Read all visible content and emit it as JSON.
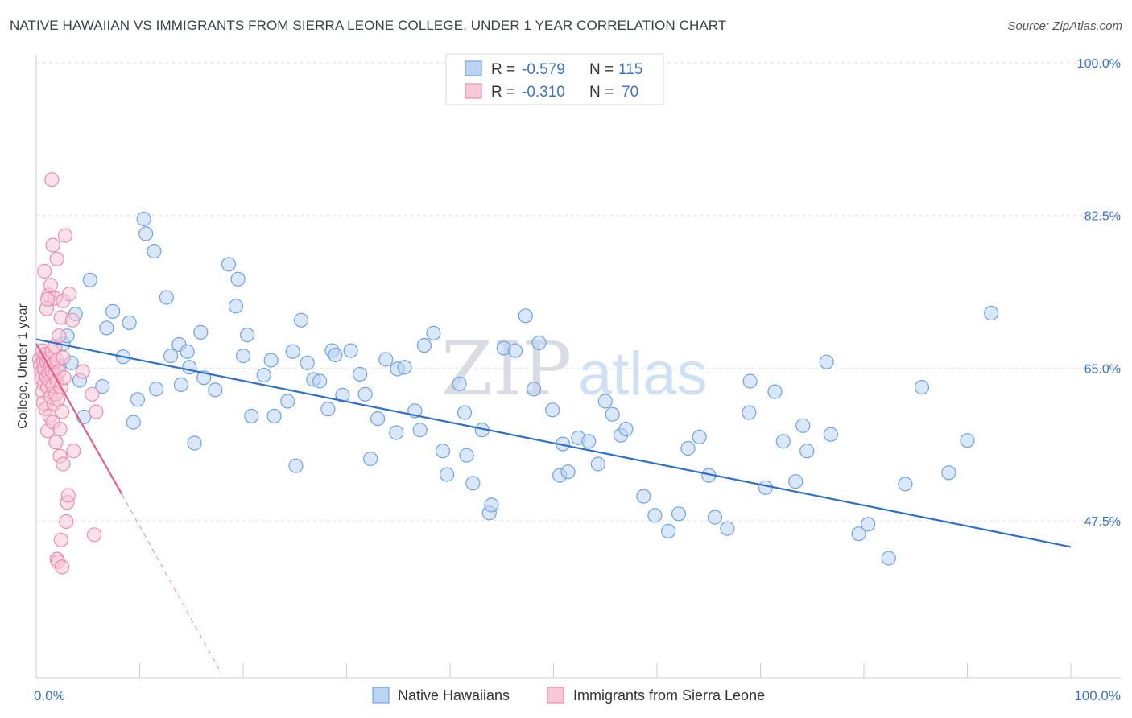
{
  "title": "NATIVE HAWAIIAN VS IMMIGRANTS FROM SIERRA LEONE COLLEGE, UNDER 1 YEAR CORRELATION CHART",
  "source": "Source: ZipAtlas.com",
  "watermark": {
    "part1": "ZIP",
    "part2": "atlas"
  },
  "colors": {
    "blue": "#6fa3e0",
    "blue_fill": "#bcd4f3",
    "blue_line": "#2f6fcc",
    "pink": "#ec8cac",
    "pink_fill": "#f7c9d8",
    "pink_line": "#e0608a",
    "grid": "#dde3ea",
    "axis_text": "#3b72c9"
  },
  "legend": {
    "rows": [
      {
        "r_label": "R = ",
        "r_value": "-0.579",
        "n_label": "N = ",
        "n_value": "115"
      },
      {
        "r_label": "R = ",
        "r_value": "-0.310",
        "n_label": "N = ",
        "n_value": "70"
      }
    ]
  },
  "chart_data": {
    "type": "scatter",
    "xlabel": "",
    "ylabel": "College, Under 1 year",
    "xlim": [
      0,
      100
    ],
    "ylim": [
      29.5,
      100
    ],
    "x_ticks": [
      {
        "value": 0,
        "label": "0.0%"
      },
      {
        "value": 100,
        "label": "100.0%"
      }
    ],
    "y_ticks": [
      {
        "value": 100,
        "label": "100.0%"
      },
      {
        "value": 82.5,
        "label": "82.5%"
      },
      {
        "value": 65,
        "label": "65.0%"
      },
      {
        "value": 47.5,
        "label": "47.5%"
      }
    ],
    "grid": true,
    "legend_position": "top-center",
    "series": [
      {
        "name": "Native Hawaiians",
        "color": "#6fa3e0",
        "trend": {
          "x0": 0,
          "y0": 68.3,
          "x1": 100,
          "y1": 44.5,
          "dashed_extension": false
        },
        "points": [
          [
            0.6,
            66.2
          ],
          [
            1.2,
            64.8
          ],
          [
            1.8,
            63.8
          ],
          [
            2.2,
            65.3
          ],
          [
            2.6,
            67.8
          ],
          [
            3.0,
            68.7
          ],
          [
            3.4,
            65.6
          ],
          [
            3.8,
            71.2
          ],
          [
            4.2,
            63.6
          ],
          [
            4.6,
            59.4
          ],
          [
            5.2,
            75.1
          ],
          [
            6.4,
            62.9
          ],
          [
            6.8,
            69.6
          ],
          [
            7.4,
            71.5
          ],
          [
            8.4,
            66.3
          ],
          [
            9.0,
            70.2
          ],
          [
            9.4,
            58.8
          ],
          [
            9.8,
            61.4
          ],
          [
            10.4,
            82.1
          ],
          [
            10.6,
            80.4
          ],
          [
            11.4,
            78.4
          ],
          [
            11.6,
            62.6
          ],
          [
            12.6,
            73.1
          ],
          [
            13.0,
            66.4
          ],
          [
            13.8,
            67.7
          ],
          [
            14.0,
            63.1
          ],
          [
            14.6,
            66.9
          ],
          [
            14.8,
            65.1
          ],
          [
            15.3,
            56.4
          ],
          [
            15.9,
            69.1
          ],
          [
            16.2,
            63.9
          ],
          [
            17.3,
            62.5
          ],
          [
            18.6,
            76.9
          ],
          [
            19.5,
            75.2
          ],
          [
            19.3,
            72.1
          ],
          [
            20.0,
            66.4
          ],
          [
            20.4,
            68.8
          ],
          [
            20.8,
            59.5
          ],
          [
            22.0,
            64.2
          ],
          [
            22.7,
            65.9
          ],
          [
            23.0,
            59.5
          ],
          [
            24.3,
            61.2
          ],
          [
            25.1,
            53.8
          ],
          [
            24.8,
            66.9
          ],
          [
            25.6,
            70.5
          ],
          [
            26.2,
            65.6
          ],
          [
            26.8,
            63.7
          ],
          [
            27.4,
            63.5
          ],
          [
            28.2,
            60.3
          ],
          [
            28.6,
            67.0
          ],
          [
            28.9,
            66.5
          ],
          [
            29.6,
            61.9
          ],
          [
            30.4,
            67.0
          ],
          [
            31.3,
            64.3
          ],
          [
            31.8,
            62.0
          ],
          [
            32.3,
            54.6
          ],
          [
            33.0,
            59.2
          ],
          [
            33.8,
            66.0
          ],
          [
            34.8,
            57.6
          ],
          [
            34.9,
            64.9
          ],
          [
            35.6,
            65.1
          ],
          [
            36.6,
            60.1
          ],
          [
            37.1,
            57.9
          ],
          [
            37.5,
            67.6
          ],
          [
            38.4,
            69.0
          ],
          [
            39.3,
            55.5
          ],
          [
            39.7,
            52.8
          ],
          [
            40.9,
            63.2
          ],
          [
            41.4,
            59.9
          ],
          [
            41.6,
            55.0
          ],
          [
            42.2,
            51.8
          ],
          [
            43.1,
            57.9
          ],
          [
            43.8,
            48.4
          ],
          [
            44.0,
            49.3
          ],
          [
            45.2,
            67.3
          ],
          [
            46.3,
            67.0
          ],
          [
            47.3,
            71.0
          ],
          [
            48.1,
            62.6
          ],
          [
            48.6,
            67.9
          ],
          [
            49.9,
            60.2
          ],
          [
            50.6,
            52.7
          ],
          [
            50.9,
            56.3
          ],
          [
            51.4,
            53.1
          ],
          [
            52.4,
            57.0
          ],
          [
            53.4,
            56.6
          ],
          [
            54.3,
            54.0
          ],
          [
            55.0,
            61.2
          ],
          [
            55.7,
            59.7
          ],
          [
            56.5,
            57.3
          ],
          [
            57.0,
            58.0
          ],
          [
            58.7,
            50.3
          ],
          [
            59.8,
            48.1
          ],
          [
            61.1,
            46.3
          ],
          [
            62.1,
            48.3
          ],
          [
            63.0,
            55.8
          ],
          [
            64.1,
            57.1
          ],
          [
            65.0,
            52.7
          ],
          [
            65.6,
            47.9
          ],
          [
            66.8,
            46.6
          ],
          [
            68.9,
            59.9
          ],
          [
            69.0,
            63.5
          ],
          [
            70.5,
            51.3
          ],
          [
            71.4,
            62.3
          ],
          [
            72.2,
            56.6
          ],
          [
            73.4,
            52.0
          ],
          [
            74.1,
            58.4
          ],
          [
            74.5,
            55.5
          ],
          [
            76.4,
            65.7
          ],
          [
            76.8,
            57.4
          ],
          [
            79.5,
            46.0
          ],
          [
            80.4,
            47.1
          ],
          [
            82.4,
            43.2
          ],
          [
            84.0,
            51.7
          ],
          [
            85.6,
            62.8
          ],
          [
            88.2,
            53.0
          ],
          [
            90.0,
            56.7
          ],
          [
            92.3,
            71.3
          ]
        ]
      },
      {
        "name": "Immigrants from Sierra Leone",
        "color": "#ec8cac",
        "trend": {
          "x0": 0,
          "y0": 67.8,
          "x1": 8.3,
          "y1": 50.5,
          "dash_x1": 17.9,
          "dash_y1": 30.0
        },
        "points": [
          [
            0.3,
            66.0
          ],
          [
            0.4,
            65.3
          ],
          [
            0.5,
            64.5
          ],
          [
            0.5,
            63.8
          ],
          [
            0.6,
            67.0
          ],
          [
            0.6,
            62.3
          ],
          [
            0.7,
            65.8
          ],
          [
            0.7,
            61.0
          ],
          [
            0.8,
            64.9
          ],
          [
            0.8,
            63.2
          ],
          [
            0.9,
            66.6
          ],
          [
            0.9,
            60.3
          ],
          [
            1.0,
            64.0
          ],
          [
            1.0,
            65.7
          ],
          [
            1.1,
            62.8
          ],
          [
            1.1,
            57.8
          ],
          [
            1.2,
            64.4
          ],
          [
            1.2,
            66.1
          ],
          [
            1.3,
            63.5
          ],
          [
            1.3,
            59.5
          ],
          [
            1.4,
            65.2
          ],
          [
            1.4,
            61.7
          ],
          [
            1.5,
            64.7
          ],
          [
            1.5,
            66.9
          ],
          [
            1.6,
            63.0
          ],
          [
            1.6,
            58.8
          ],
          [
            1.7,
            65.5
          ],
          [
            1.7,
            60.9
          ],
          [
            1.8,
            64.2
          ],
          [
            1.8,
            67.5
          ],
          [
            1.9,
            62.0
          ],
          [
            1.9,
            56.5
          ],
          [
            2.0,
            63.6
          ],
          [
            2.0,
            65.9
          ],
          [
            2.1,
            61.4
          ],
          [
            2.2,
            64.6
          ],
          [
            2.3,
            58.0
          ],
          [
            2.4,
            62.8
          ],
          [
            2.5,
            60.0
          ],
          [
            2.6,
            66.2
          ],
          [
            2.7,
            63.9
          ],
          [
            0.8,
            76.1
          ],
          [
            1.0,
            71.8
          ],
          [
            1.2,
            73.4
          ],
          [
            1.4,
            74.5
          ],
          [
            1.6,
            79.1
          ],
          [
            1.8,
            73.0
          ],
          [
            2.0,
            77.5
          ],
          [
            2.2,
            68.7
          ],
          [
            2.4,
            70.8
          ],
          [
            2.6,
            72.7
          ],
          [
            2.8,
            80.2
          ],
          [
            3.2,
            73.5
          ],
          [
            3.5,
            70.5
          ],
          [
            1.1,
            72.9
          ],
          [
            1.5,
            86.6
          ],
          [
            2.3,
            54.9
          ],
          [
            2.6,
            54.0
          ],
          [
            3.0,
            49.6
          ],
          [
            3.6,
            55.5
          ],
          [
            4.5,
            64.6
          ],
          [
            5.4,
            62.0
          ],
          [
            5.8,
            60.0
          ],
          [
            3.1,
            50.4
          ],
          [
            2.9,
            47.4
          ],
          [
            2.4,
            45.3
          ],
          [
            2.0,
            43.1
          ],
          [
            2.1,
            42.8
          ],
          [
            2.5,
            42.2
          ],
          [
            5.6,
            45.9
          ]
        ]
      }
    ]
  },
  "bottom_legend": [
    {
      "label": "Native Hawaiians"
    },
    {
      "label": "Immigrants from Sierra Leone"
    }
  ]
}
